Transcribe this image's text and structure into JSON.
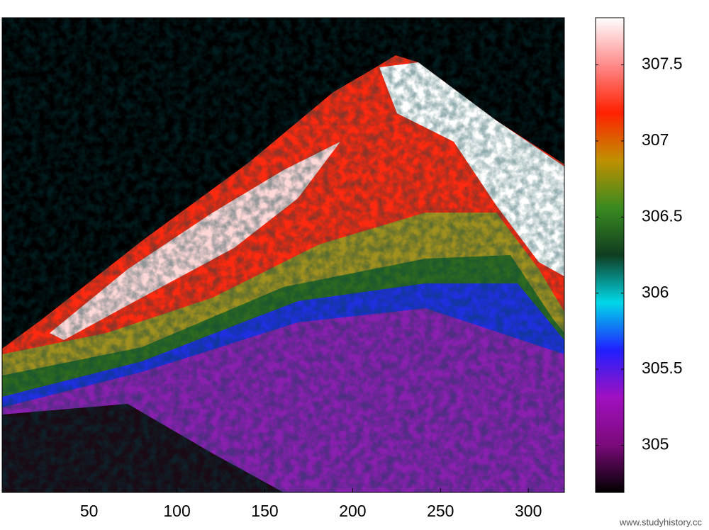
{
  "chart_data": {
    "type": "heatmap",
    "xlim": [
      0.5,
      320.5
    ],
    "xticks": [
      50,
      100,
      150,
      200,
      250,
      300
    ],
    "colorbar": {
      "lim": [
        304.69,
        307.81
      ],
      "ticks": [
        305,
        305.5,
        306,
        306.5,
        307,
        307.5
      ],
      "colors": [
        "#000000",
        "#7a0a7a",
        "#a010c0",
        "#2020ff",
        "#00d8e8",
        "#0f3d20",
        "#3a8a20",
        "#c09000",
        "#ff2000",
        "#ff8a8a",
        "#ffffff"
      ]
    }
  },
  "watermark": "www.studyhistory.cc"
}
